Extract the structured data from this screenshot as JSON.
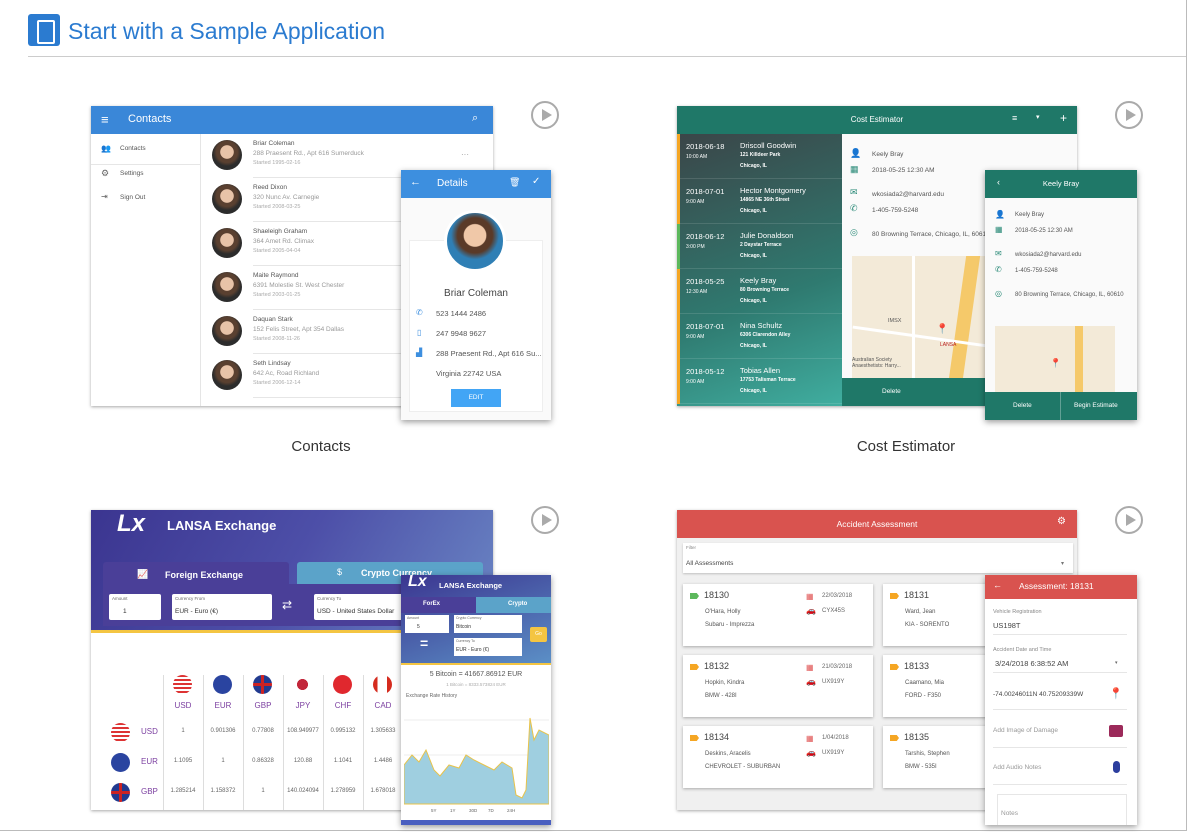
{
  "header": {
    "title": "Start with a Sample Application",
    "icon": "tablet-icon"
  },
  "samples": [
    {
      "caption": "Contacts"
    },
    {
      "caption": "Cost Estimator"
    },
    {
      "caption": ""
    },
    {
      "caption": ""
    }
  ],
  "contacts": {
    "title": "Contacts",
    "nav": [
      "Contacts",
      "Settings",
      "Sign Out"
    ],
    "rows": [
      {
        "name": "Briar Coleman",
        "addr": "288 Praesent Rd., Apt 616 Sumerduck",
        "started": "Started 1995-02-16"
      },
      {
        "name": "Reed Dixon",
        "addr": "320 Nunc Av. Carnegie",
        "started": "Started 2008-03-25"
      },
      {
        "name": "Shaeleigh Graham",
        "addr": "364 Amet Rd. Climax",
        "started": "Started 2005-04-04"
      },
      {
        "name": "Maite Raymond",
        "addr": "6391 Molestie St. West Chester",
        "started": "Started 2003-01-25"
      },
      {
        "name": "Daquan Stark",
        "addr": "152 Felis Street, Apt 354 Dallas",
        "started": "Started 2008-11-26"
      },
      {
        "name": "Seth Lindsay",
        "addr": "642 Ac, Road Richland",
        "started": "Started 2006-12-14"
      }
    ],
    "more": "···",
    "details": {
      "title": "Details",
      "name": "Briar Coleman",
      "phone": "523 1444 2486",
      "mobile": "247 9948 9627",
      "address": "288 Praesent Rd., Apt 616 Su...",
      "address2": "Virginia 22742 USA",
      "edit": "EDIT"
    }
  },
  "cost": {
    "title": "Cost Estimator",
    "rows": [
      {
        "date": "2018-06-18",
        "time": "10:00 AM",
        "name": "Driscoll Goodwin",
        "street": "121 Killdeer Park",
        "city": "Chicago, IL",
        "accent": "#f5a623"
      },
      {
        "date": "2018-07-01",
        "time": "9:00 AM",
        "name": "Hector Montgomery",
        "street": "14865 NE 36th Street",
        "city": "Chicago, IL",
        "accent": "#f5a623"
      },
      {
        "date": "2018-06-12",
        "time": "3:00 PM",
        "name": "Julie Donaldson",
        "street": "2 Daystar Terrace",
        "city": "Chicago, IL",
        "accent": "#5cb85c"
      },
      {
        "date": "2018-05-25",
        "time": "12:30 AM",
        "name": "Keely Bray",
        "street": "80 Browning Terrace",
        "city": "Chicago, IL",
        "accent": "#f5a623"
      },
      {
        "date": "2018-07-01",
        "time": "9:00 AM",
        "name": "Nina Schultz",
        "street": "6306 Clarendon Alley",
        "city": "Chicago, IL",
        "accent": "#f5a623"
      },
      {
        "date": "2018-05-12",
        "time": "9:00 AM",
        "name": "Tobias Allen",
        "street": "17753 Talisman Terrace",
        "city": "Chicago, IL",
        "accent": "#f5a623"
      }
    ],
    "detail": {
      "name": "Keely Bray",
      "datetime": "2018-05-25 12:30 AM",
      "email": "wkosiada2@harvard.edu",
      "phone": "1-405-759-5248",
      "address": "80 Browning Terrace, Chicago, IL, 60610",
      "delete": "Delete",
      "begin": "Begin Estimate"
    },
    "map_labels": [
      "IMSX",
      "LANSA",
      "Australian Society Anaesthetists: Harry..."
    ]
  },
  "exchange": {
    "title": "LANSA Exchange",
    "tabs": [
      "Foreign Exchange",
      "Crypto Currency"
    ],
    "amount_label": "Amount",
    "amount": "1",
    "from_label": "Currency From",
    "from": "EUR - Euro (€)",
    "to_label": "Currency To",
    "to": "USD - United States Dollar",
    "columns": [
      "USD",
      "EUR",
      "GBP",
      "JPY",
      "CHF",
      "CAD"
    ],
    "rows": [
      {
        "code": "USD",
        "values": [
          "1",
          "0.901306",
          "0.77808",
          "108.949977",
          "0.995132",
          "1.305633"
        ]
      },
      {
        "code": "EUR",
        "values": [
          "1.1095",
          "1",
          "0.86328",
          "120.88",
          "1.1041",
          "1.4486"
        ]
      },
      {
        "code": "GBP",
        "values": [
          "1.285214",
          "1.158372",
          "1",
          "140.024094",
          "1.278959",
          "1.678018"
        ]
      }
    ],
    "mobile": {
      "title": "LANSA Exchange",
      "tabs": [
        "ForEx",
        "Crypto"
      ],
      "amount_label": "Amount",
      "amount": "5",
      "crypto_label": "Crypto Currency",
      "crypto": "Bitcoin",
      "to_label": "Currency To",
      "to": "EUR - Euro (€)",
      "go": "Go",
      "result": "5 Bitcoin = 41667.86912 EUR",
      "rate": "1 Bitcoin = 8333.573824 EUR",
      "history": "Exchange Rate History",
      "ranges": [
        "5Y",
        "1Y",
        "30D",
        "7D",
        "24H"
      ]
    }
  },
  "accident": {
    "title": "Accident Assessment",
    "filter_label": "Filter",
    "filter": "All Assessments",
    "cards": [
      {
        "id": "18130",
        "date": "22/03/2018",
        "plate": "CYX45S",
        "name": "O'Hara, Holly",
        "car": "Subaru - Imprezza",
        "tag": "#5cb85c"
      },
      {
        "id": "18131",
        "date": "",
        "plate": "",
        "name": "Ward, Jean",
        "car": "KIA - SORENTO",
        "tag": "#f5a623"
      },
      {
        "id": "18132",
        "date": "21/03/2018",
        "plate": "UX919Y",
        "name": "Hopkin, Kindra",
        "car": "BMW - 428I",
        "tag": "#f5a623"
      },
      {
        "id": "18133",
        "date": "",
        "plate": "",
        "name": "Caamano, Mia",
        "car": "FORD - F350",
        "tag": "#f5a623"
      },
      {
        "id": "18134",
        "date": "1/04/2018",
        "plate": "UX919Y",
        "name": "Deskins, Aracelis",
        "car": "CHEVROLET - SUBURBAN",
        "tag": "#f5a623"
      },
      {
        "id": "18135",
        "date": "",
        "plate": "",
        "name": "Tarshis, Stephen",
        "car": "BMW - 535I",
        "tag": "#f5a623"
      }
    ],
    "detail": {
      "title": "Assessment: 18131",
      "reg_label": "Vehicle Registration",
      "reg": "US198T",
      "dt_label": "Accident Date and Time",
      "dt": "3/24/2018 6:38:52 AM",
      "coords": "-74.00246011N 40.75209339W",
      "image": "Add Image of Damage",
      "audio": "Add Audio Notes",
      "notes": "Notes"
    }
  }
}
